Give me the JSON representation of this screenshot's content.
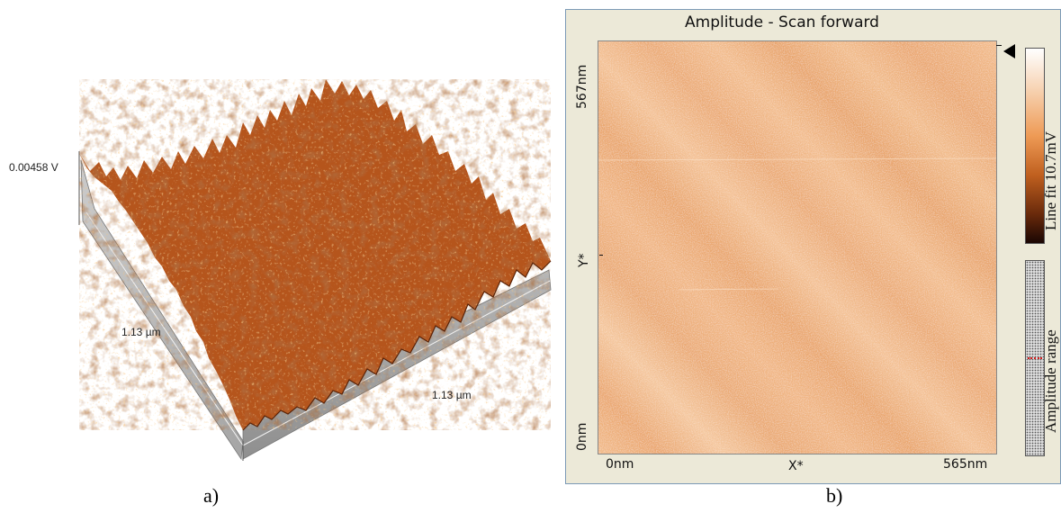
{
  "panel_a": {
    "caption": "a)",
    "z_label": "0.00458 V",
    "y_label": "1.13 µm",
    "x_label": "1.13 µm"
  },
  "panel_b": {
    "caption": "b)",
    "title": "Amplitude - Scan forward",
    "y_top": "567nm",
    "y_mid": "Y*",
    "y_bottom": "0nm",
    "x_left": "0nm",
    "x_mid": "X*",
    "x_right": "565nm",
    "colorbar_label": "Line fit 10.7mV",
    "range_label": "Amplitude range",
    "icons": [
      "pointer-triangle-icon"
    ]
  },
  "colors": {
    "surface_base": "#b5551d",
    "surface_dark": "#6b2a0e",
    "surface_light": "#e8883a",
    "scan_base": "#efb07b",
    "panel_bg": "#ece9d8"
  }
}
